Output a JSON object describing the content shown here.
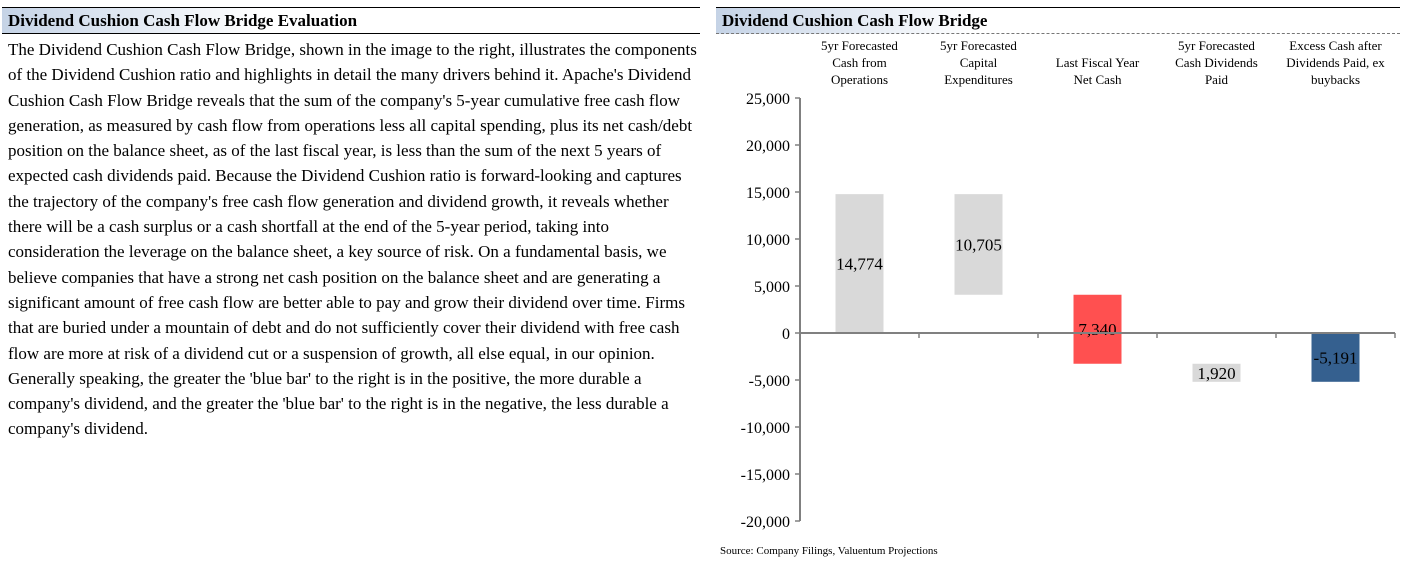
{
  "left": {
    "title": "Dividend Cushion Cash Flow Bridge Evaluation",
    "paragraph": "The Dividend Cushion Cash Flow Bridge, shown in the image to the right, illustrates the components of the Dividend Cushion ratio and highlights in detail the many drivers behind it. Apache's Dividend Cushion Cash Flow Bridge reveals that the sum of the company's 5-year cumulative free cash flow generation, as measured by cash flow from operations less all capital spending, plus its net cash/debt position on the balance sheet, as of the last fiscal year, is less than the sum of the next 5 years of expected cash dividends paid. Because the Dividend Cushion ratio is forward-looking and captures the trajectory of the company's free cash flow generation and dividend growth, it reveals whether there will be a cash surplus or a cash shortfall at the end of the 5-year period, taking into consideration the leverage on the balance sheet, a key source of risk. On a fundamental basis, we believe companies that have a strong net cash position on the balance sheet and are generating a significant amount of free cash flow are better able to pay and grow their dividend over time. Firms that are buried under a mountain of debt and do not sufficiently cover their dividend with free cash flow are more at risk of a dividend cut or a suspension of growth, all else equal, in our opinion. Generally speaking, the greater the 'blue bar' to the right is in the positive, the more durable a company's dividend, and the greater the 'blue bar' to the right is in the negative, the less durable a company's dividend."
  },
  "chart_data": {
    "type": "bar",
    "subtype": "waterfall",
    "title": "Dividend Cushion Cash Flow Bridge",
    "categories": [
      [
        "5yr Forecasted",
        "Cash from",
        "Operations"
      ],
      [
        "5yr Forecasted",
        "Capital",
        "Expenditures"
      ],
      [
        "Last Fiscal Year",
        "Net Cash"
      ],
      [
        "5yr Forecasted",
        "Cash Dividends",
        "Paid"
      ],
      [
        "Excess Cash after",
        "Dividends Paid, ex",
        "buybacks"
      ]
    ],
    "bars": [
      {
        "start": 0,
        "end": 14774,
        "label": "14,774",
        "color": "#d9d9d9"
      },
      {
        "start": 14774,
        "end": 4069,
        "label": "10,705",
        "color": "#d9d9d9"
      },
      {
        "start": 4069,
        "end": -3271,
        "label": "7,340",
        "color": "#ff5050"
      },
      {
        "start": -3271,
        "end": -5191,
        "label": "1,920",
        "color": "#d9d9d9"
      },
      {
        "start": 0,
        "end": -5191,
        "label": "-5,191",
        "color": "#35608f"
      }
    ],
    "ylim": [
      -20000,
      25000
    ],
    "yticks": [
      25000,
      20000,
      15000,
      10000,
      5000,
      0,
      -5000,
      -10000,
      -15000,
      -20000
    ],
    "ytick_labels": [
      "25,000",
      "20,000",
      "15,000",
      "10,000",
      "5,000",
      "0",
      "-5,000",
      "-10,000",
      "-15,000",
      "-20,000"
    ],
    "source": "Source: Company Filings, Valuentum Projections"
  }
}
